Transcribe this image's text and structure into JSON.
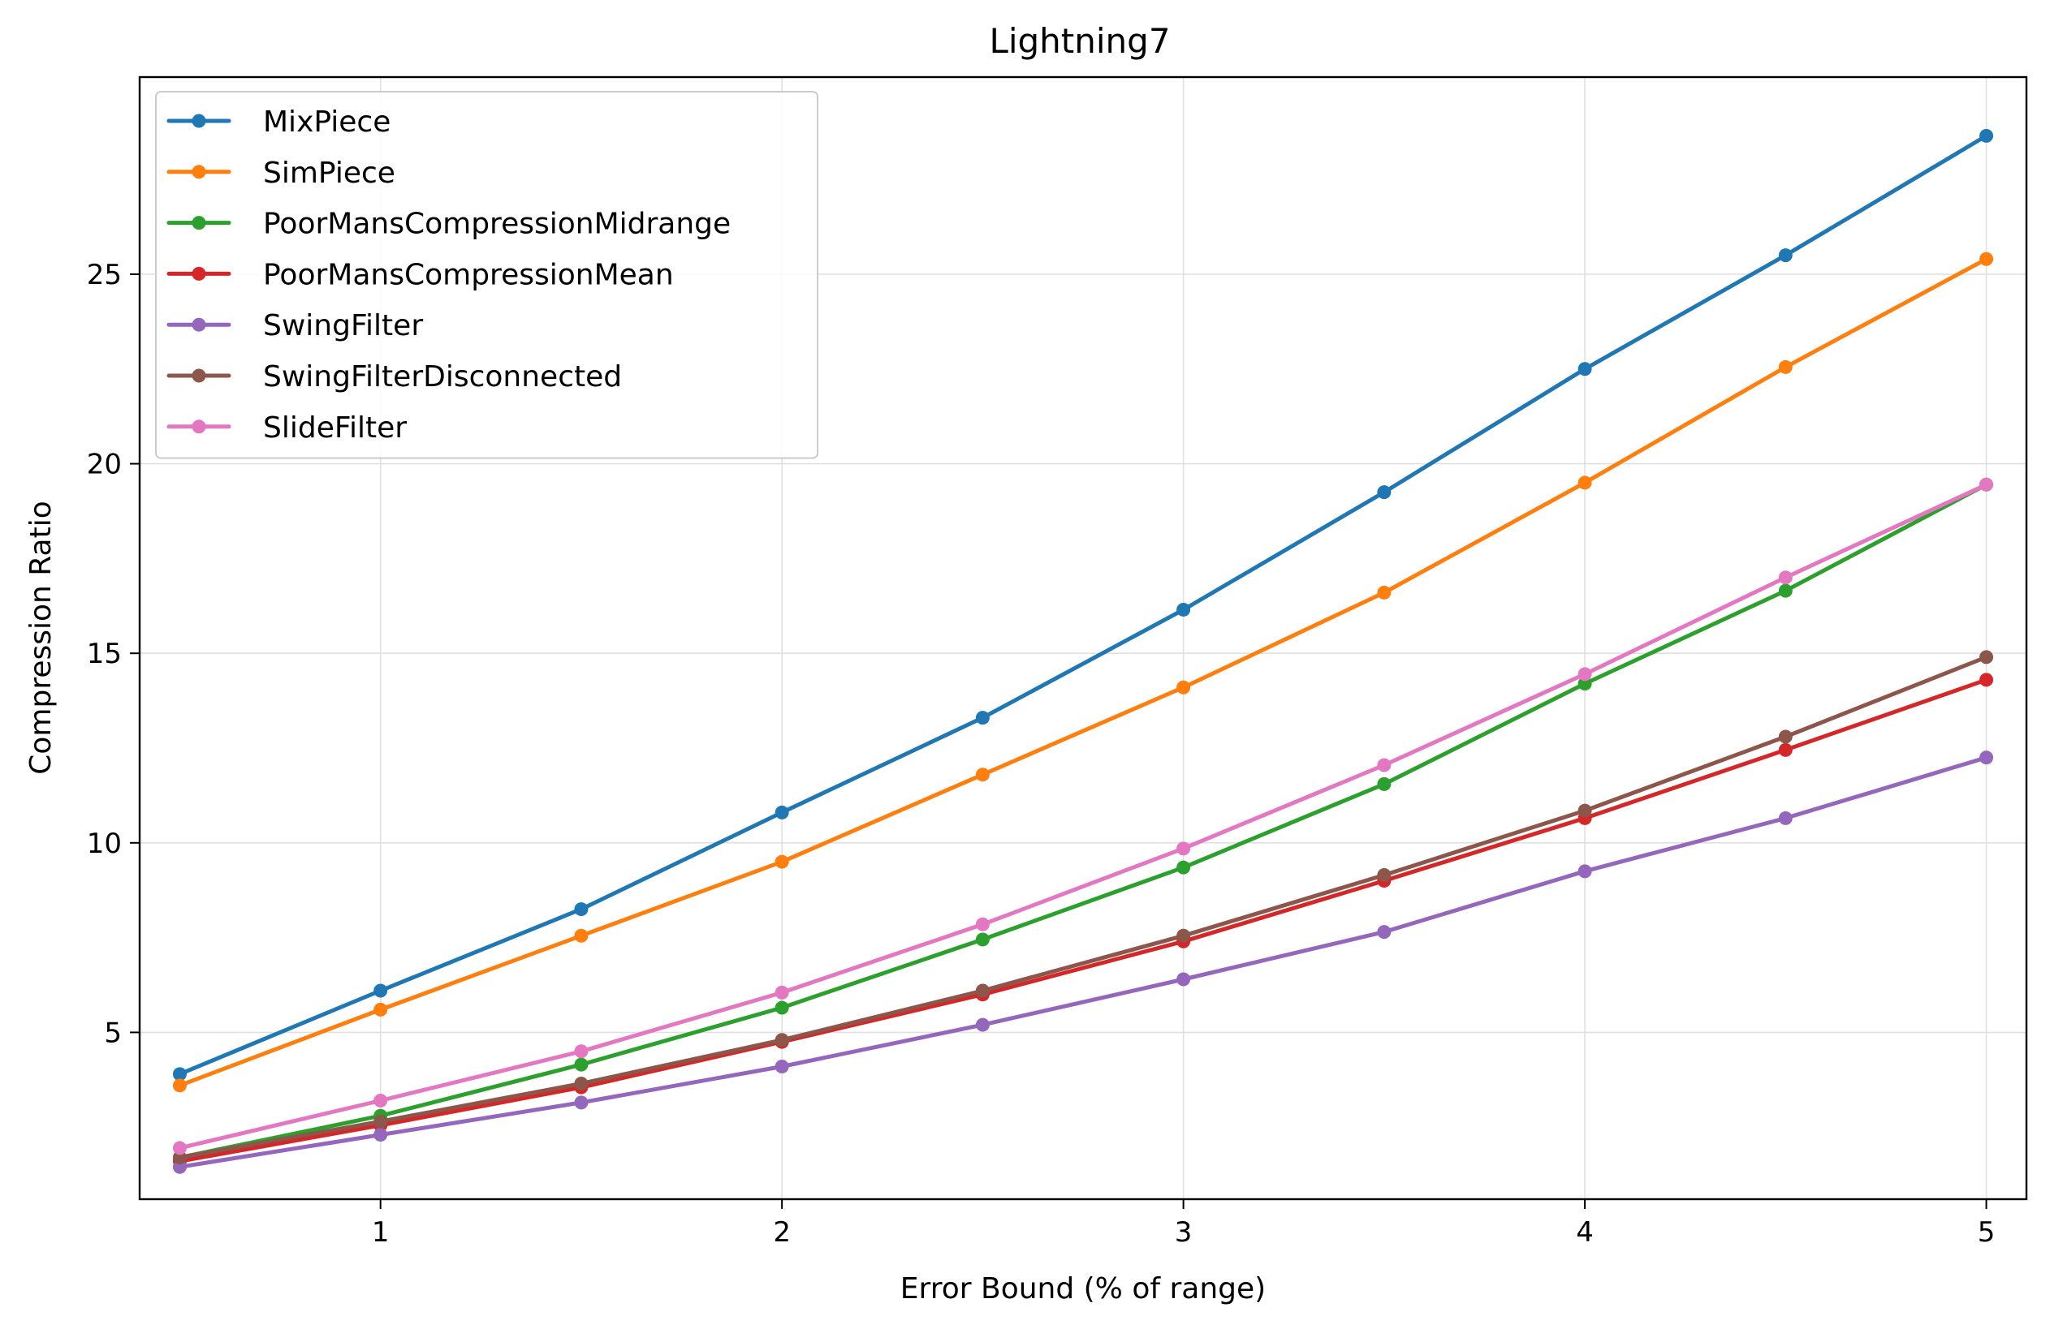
{
  "chart_data": {
    "type": "line",
    "title": "Lightning7",
    "xlabel": "Error Bound (% of range)",
    "ylabel": "Compression Ratio",
    "xlim": [
      0.4,
      5.1
    ],
    "ylim": [
      0.6,
      30.2
    ],
    "xticks": [
      1,
      2,
      3,
      4,
      5
    ],
    "yticks": [
      5,
      10,
      15,
      20,
      25
    ],
    "grid": true,
    "legend_position": "top-left",
    "x": [
      0.5,
      1.0,
      1.5,
      2.0,
      2.5,
      3.0,
      3.5,
      4.0,
      4.5,
      5.0
    ],
    "series": [
      {
        "name": "MixPiece",
        "color": "#1f77b4",
        "values": [
          3.9,
          6.1,
          8.25,
          10.8,
          13.3,
          16.15,
          19.25,
          22.5,
          25.5,
          28.65
        ]
      },
      {
        "name": "SimPiece",
        "color": "#ff7f0e",
        "values": [
          3.6,
          5.6,
          7.55,
          9.5,
          11.8,
          14.1,
          16.6,
          19.5,
          22.55,
          25.4
        ]
      },
      {
        "name": "PoorMansCompressionMidrange",
        "color": "#2ca02c",
        "values": [
          1.7,
          2.8,
          4.15,
          5.65,
          7.45,
          9.35,
          11.55,
          14.2,
          16.65,
          19.45
        ]
      },
      {
        "name": "PoorMansCompressionMean",
        "color": "#d62728",
        "values": [
          1.6,
          2.55,
          3.55,
          4.75,
          6.0,
          7.4,
          9.0,
          10.65,
          12.45,
          14.3
        ]
      },
      {
        "name": "SwingFilter",
        "color": "#9467bd",
        "values": [
          1.45,
          2.3,
          3.15,
          4.1,
          5.2,
          6.4,
          7.65,
          9.25,
          10.65,
          12.25
        ]
      },
      {
        "name": "SwingFilterDisconnected",
        "color": "#8c564b",
        "values": [
          1.7,
          2.65,
          3.65,
          4.8,
          6.1,
          7.55,
          9.15,
          10.85,
          12.8,
          14.9
        ]
      },
      {
        "name": "SlideFilter",
        "color": "#e377c2",
        "values": [
          1.95,
          3.2,
          4.5,
          6.05,
          7.85,
          9.85,
          12.05,
          14.45,
          17.0,
          19.45
        ]
      }
    ]
  }
}
